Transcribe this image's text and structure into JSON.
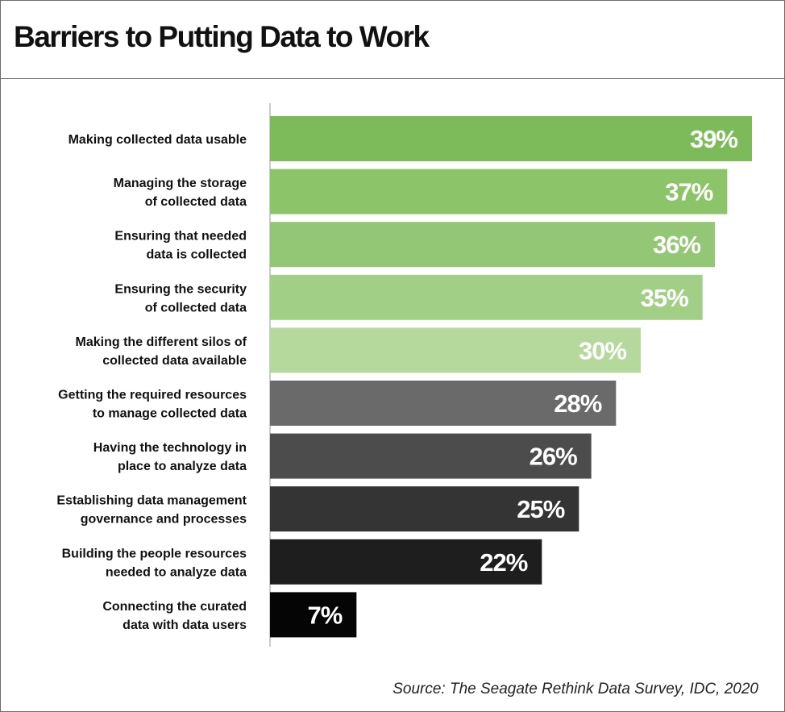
{
  "chart_data": {
    "type": "bar",
    "orientation": "horizontal",
    "title": "Barriers to Putting Data to Work",
    "categories": [
      [
        "Making collected data usable"
      ],
      [
        "Managing the storage",
        "of collected data"
      ],
      [
        "Ensuring that needed",
        "data is collected"
      ],
      [
        "Ensuring the security",
        "of collected data"
      ],
      [
        "Making the different silos of",
        "collected data available"
      ],
      [
        "Getting the required resources",
        "to manage collected data"
      ],
      [
        "Having the technology in",
        "place to analyze data"
      ],
      [
        "Establishing data management",
        "governance and processes"
      ],
      [
        "Building the people resources",
        "needed to analyze data"
      ],
      [
        "Connecting the curated",
        "data with data users"
      ]
    ],
    "values": [
      39,
      37,
      36,
      35,
      30,
      28,
      26,
      25,
      22,
      7
    ],
    "value_labels": [
      "39%",
      "37%",
      "36%",
      "35%",
      "30%",
      "28%",
      "26%",
      "25%",
      "22%",
      "7%"
    ],
    "bar_colors": [
      "#7dbb5a",
      "#8cc46a",
      "#94c775",
      "#a2cf86",
      "#b5d99d",
      "#6a6a6a",
      "#4c4c4c",
      "#343434",
      "#1e1e1e",
      "#050505"
    ],
    "xlim": [
      0,
      39
    ],
    "grid": false,
    "legend": "none",
    "source": "Source: The Seagate Rethink Data Survey, IDC, 2020"
  }
}
